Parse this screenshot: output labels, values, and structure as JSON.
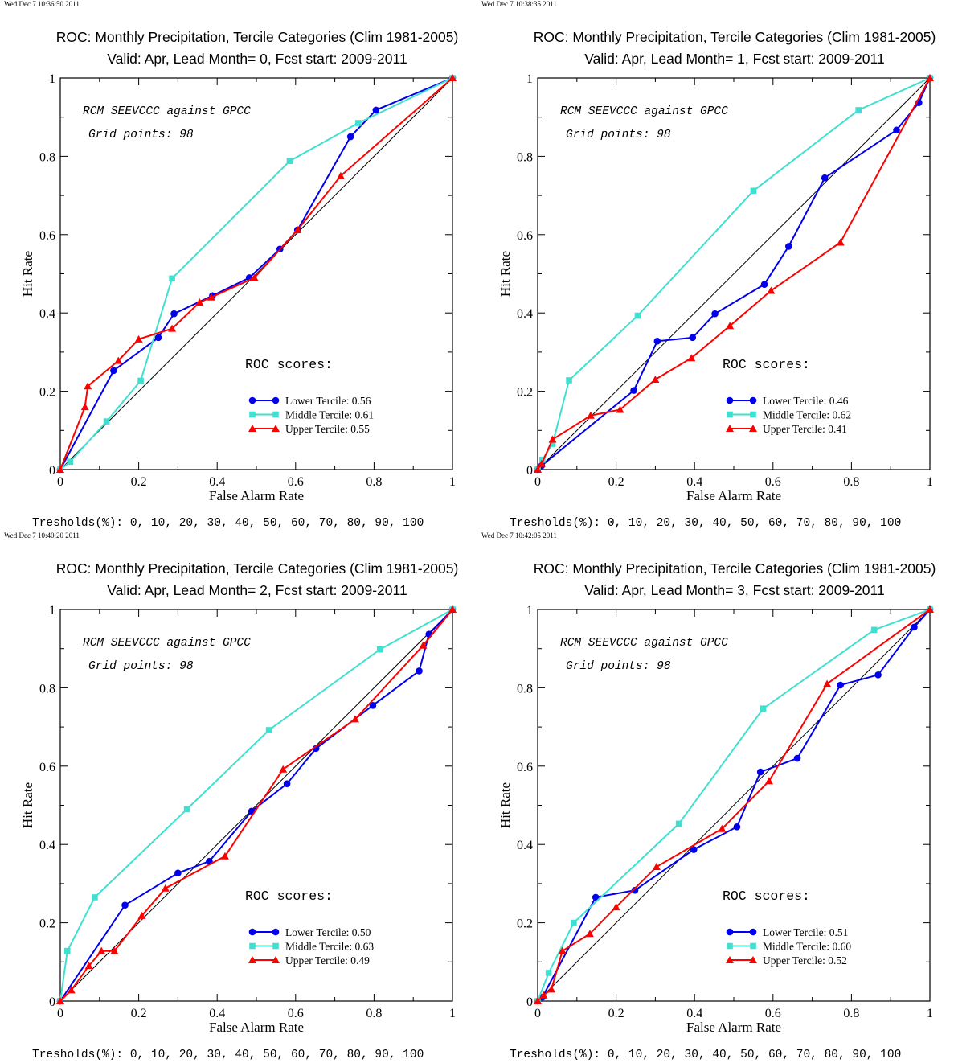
{
  "colors": {
    "lower": "#0000ee",
    "middle": "#40e0d0",
    "upper": "#ff0000",
    "diagonal": "#000000"
  },
  "panels": [
    {
      "stamp": "Wed Dec  7 10:36:50 2011",
      "title": "ROC: Monthly Precipitation, Tercile Categories (Clim 1981-2005)",
      "subtitle": "Valid: Apr, Lead Month= 0, Fcst start: 2009-2011",
      "annotation1": "RCM SEEVCCC against GPCC",
      "annotation2": "Grid points:   98",
      "roc_label": "ROC scores:",
      "thresholds": "Tresholds(%): 0, 10, 20, 30, 40, 50, 60, 70, 80, 90, 100"
    },
    {
      "stamp": "Wed Dec  7 10:38:35 2011",
      "title": "ROC: Monthly Precipitation, Tercile Categories (Clim 1981-2005)",
      "subtitle": "Valid: Apr, Lead Month= 1, Fcst start: 2009-2011",
      "annotation1": "RCM SEEVCCC against GPCC",
      "annotation2": "Grid points:   98",
      "roc_label": "ROC scores:",
      "thresholds": "Tresholds(%): 0, 10, 20, 30, 40, 50, 60, 70, 80, 90, 100"
    },
    {
      "stamp": "Wed Dec  7 10:40:20 2011",
      "title": "ROC: Monthly Precipitation, Tercile Categories (Clim 1981-2005)",
      "subtitle": "Valid: Apr, Lead Month= 2, Fcst start: 2009-2011",
      "annotation1": "RCM SEEVCCC against GPCC",
      "annotation2": "Grid points:   98",
      "roc_label": "ROC scores:",
      "thresholds": "Tresholds(%): 0, 10, 20, 30, 40, 50, 60, 70, 80, 90, 100"
    },
    {
      "stamp": "Wed Dec  7 10:42:05 2011",
      "title": "ROC: Monthly Precipitation, Tercile Categories (Clim 1981-2005)",
      "subtitle": "Valid: Apr, Lead Month= 3, Fcst start: 2009-2011",
      "annotation1": "RCM SEEVCCC against GPCC",
      "annotation2": "Grid points:   98",
      "roc_label": "ROC scores:",
      "thresholds": "Tresholds(%): 0, 10, 20, 30, 40, 50, 60, 70, 80, 90, 100"
    }
  ],
  "chart_data": [
    {
      "type": "line",
      "title": "ROC: Monthly Precipitation, Tercile Categories (Clim 1981-2005)",
      "subtitle": "Valid: Apr, Lead Month= 0, Fcst start: 2009-2011",
      "xlabel": "False Alarm Rate",
      "ylabel": "Hit Rate",
      "xlim": [
        0,
        1
      ],
      "ylim": [
        0,
        1
      ],
      "xticks": [
        "0",
        "0.2",
        "0.4",
        "0.6",
        "0.8",
        "1"
      ],
      "yticks": [
        "0",
        "0.2",
        "0.4",
        "0.6",
        "0.8",
        "1"
      ],
      "legend_position": "bottom-right",
      "series": [
        {
          "name": "Lower Tercile: 0.56",
          "marker": "circle",
          "x": [
            0,
            0.136,
            0.25,
            0.29,
            0.388,
            0.482,
            0.56,
            0.605,
            0.74,
            0.805,
            1
          ],
          "y": [
            0,
            0.253,
            0.337,
            0.398,
            0.444,
            0.49,
            0.563,
            0.612,
            0.85,
            0.918,
            1
          ]
        },
        {
          "name": "Middle Tercile: 0.61",
          "marker": "square",
          "x": [
            0,
            0.025,
            0.118,
            0.205,
            0.285,
            0.585,
            0.76,
            1
          ],
          "y": [
            0,
            0.02,
            0.123,
            0.227,
            0.488,
            0.788,
            0.885,
            1
          ]
        },
        {
          "name": "Upper Tercile: 0.55",
          "marker": "triangle",
          "x": [
            0,
            0.063,
            0.07,
            0.148,
            0.2,
            0.285,
            0.355,
            0.385,
            0.495,
            0.605,
            0.715,
            1
          ],
          "y": [
            0,
            0.16,
            0.213,
            0.278,
            0.333,
            0.36,
            0.427,
            0.44,
            0.49,
            0.612,
            0.75,
            1
          ]
        }
      ]
    },
    {
      "type": "line",
      "title": "ROC: Monthly Precipitation, Tercile Categories (Clim 1981-2005)",
      "subtitle": "Valid: Apr, Lead Month= 1, Fcst start: 2009-2011",
      "xlabel": "False Alarm Rate",
      "ylabel": "Hit Rate",
      "xlim": [
        0,
        1
      ],
      "ylim": [
        0,
        1
      ],
      "xticks": [
        "0",
        "0.2",
        "0.4",
        "0.6",
        "0.8",
        "1"
      ],
      "yticks": [
        "0",
        "0.2",
        "0.4",
        "0.6",
        "0.8",
        "1"
      ],
      "legend_position": "bottom-right",
      "series": [
        {
          "name": "Lower Tercile: 0.46",
          "marker": "circle",
          "x": [
            0,
            0.01,
            0.245,
            0.305,
            0.395,
            0.452,
            0.578,
            0.64,
            0.732,
            0.915,
            0.972,
            1
          ],
          "y": [
            0,
            0.01,
            0.202,
            0.328,
            0.337,
            0.398,
            0.473,
            0.57,
            0.745,
            0.867,
            0.937,
            1
          ]
        },
        {
          "name": "Middle Tercile: 0.62",
          "marker": "square",
          "x": [
            0,
            0.012,
            0.038,
            0.08,
            0.255,
            0.55,
            0.818,
            1
          ],
          "y": [
            0,
            0.025,
            0.065,
            0.228,
            0.393,
            0.712,
            0.918,
            1
          ]
        },
        {
          "name": "Upper Tercile: 0.41",
          "marker": "triangle",
          "x": [
            0,
            0.01,
            0.038,
            0.135,
            0.21,
            0.3,
            0.392,
            0.49,
            0.595,
            0.772,
            1
          ],
          "y": [
            0,
            0.015,
            0.077,
            0.138,
            0.153,
            0.23,
            0.285,
            0.367,
            0.457,
            0.58,
            1
          ]
        }
      ]
    },
    {
      "type": "line",
      "title": "ROC: Monthly Precipitation, Tercile Categories (Clim 1981-2005)",
      "subtitle": "Valid: Apr, Lead Month= 2, Fcst start: 2009-2011",
      "xlabel": "False Alarm Rate",
      "ylabel": "Hit Rate",
      "xlim": [
        0,
        1
      ],
      "ylim": [
        0,
        1
      ],
      "xticks": [
        "0",
        "0.2",
        "0.4",
        "0.6",
        "0.8",
        "1"
      ],
      "yticks": [
        "0",
        "0.2",
        "0.4",
        "0.6",
        "0.8",
        "1"
      ],
      "legend_position": "bottom-right",
      "series": [
        {
          "name": "Lower Tercile: 0.50",
          "marker": "circle",
          "x": [
            0,
            0.165,
            0.3,
            0.38,
            0.488,
            0.578,
            0.652,
            0.797,
            0.915,
            0.94,
            1
          ],
          "y": [
            0,
            0.245,
            0.327,
            0.357,
            0.485,
            0.555,
            0.645,
            0.755,
            0.843,
            0.937,
            1
          ]
        },
        {
          "name": "Middle Tercile: 0.63",
          "marker": "square",
          "x": [
            0,
            0.018,
            0.088,
            0.323,
            0.532,
            0.815,
            1
          ],
          "y": [
            0,
            0.128,
            0.265,
            0.49,
            0.692,
            0.898,
            1
          ]
        },
        {
          "name": "Upper Tercile: 0.49",
          "marker": "triangle",
          "x": [
            0,
            0.028,
            0.073,
            0.105,
            0.138,
            0.208,
            0.268,
            0.42,
            0.568,
            0.752,
            0.925,
            1
          ],
          "y": [
            0,
            0.028,
            0.09,
            0.128,
            0.128,
            0.218,
            0.288,
            0.37,
            0.592,
            0.72,
            0.908,
            1
          ]
        }
      ]
    },
    {
      "type": "line",
      "title": "ROC: Monthly Precipitation, Tercile Categories (Clim 1981-2005)",
      "subtitle": "Valid: Apr, Lead Month= 3, Fcst start: 2009-2011",
      "xlabel": "False Alarm Rate",
      "ylabel": "Hit Rate",
      "xlim": [
        0,
        1
      ],
      "ylim": [
        0,
        1
      ],
      "xticks": [
        "0",
        "0.2",
        "0.4",
        "0.6",
        "0.8",
        "1"
      ],
      "yticks": [
        "0",
        "0.2",
        "0.4",
        "0.6",
        "0.8",
        "1"
      ],
      "legend_position": "bottom-right",
      "series": [
        {
          "name": "Lower Tercile: 0.51",
          "marker": "circle",
          "x": [
            0,
            0.012,
            0.148,
            0.248,
            0.398,
            0.508,
            0.568,
            0.662,
            0.772,
            0.868,
            0.96,
            1
          ],
          "y": [
            0,
            0.01,
            0.265,
            0.283,
            0.387,
            0.445,
            0.585,
            0.62,
            0.807,
            0.833,
            0.955,
            1
          ]
        },
        {
          "name": "Middle Tercile: 0.60",
          "marker": "square",
          "x": [
            0,
            0.028,
            0.092,
            0.36,
            0.575,
            0.858,
            1
          ],
          "y": [
            0,
            0.072,
            0.2,
            0.453,
            0.747,
            0.948,
            1
          ]
        },
        {
          "name": "Upper Tercile: 0.52",
          "marker": "triangle",
          "x": [
            0,
            0.015,
            0.035,
            0.063,
            0.133,
            0.2,
            0.303,
            0.47,
            0.59,
            0.738,
            1
          ],
          "y": [
            0,
            0.015,
            0.03,
            0.128,
            0.172,
            0.24,
            0.343,
            0.44,
            0.562,
            0.81,
            1
          ]
        }
      ]
    }
  ]
}
